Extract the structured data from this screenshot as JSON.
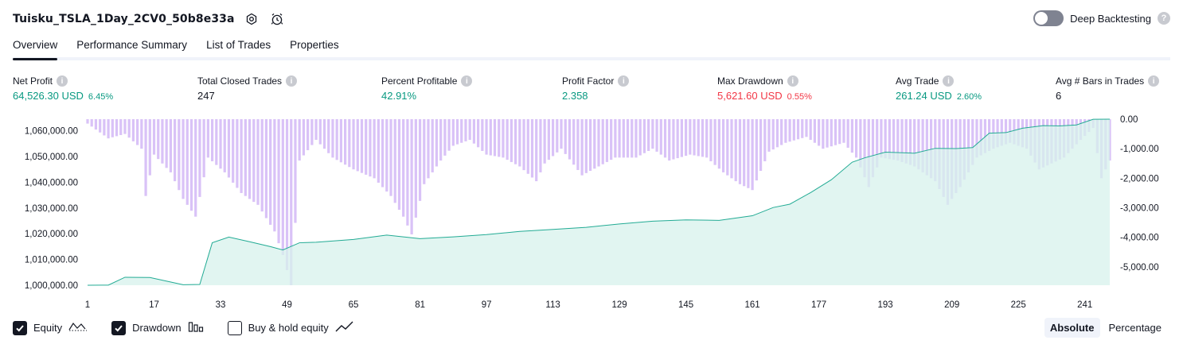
{
  "header": {
    "strategy_name": "Tuisku_TSLA_1Day_2CV0_50b8e33a",
    "settings_icon": "gear-icon",
    "alert_icon": "alarm-clock-icon"
  },
  "deep_backtesting": {
    "label": "Deep Backtesting",
    "enabled": false,
    "help": "?"
  },
  "tabs": [
    {
      "label": "Overview",
      "active": true
    },
    {
      "label": "Performance Summary",
      "active": false
    },
    {
      "label": "List of Trades",
      "active": false
    },
    {
      "label": "Properties",
      "active": false
    }
  ],
  "metrics": {
    "net_profit": {
      "label": "Net Profit",
      "value": "64,526.30 USD",
      "pct": "6.45%"
    },
    "total_closed_trades": {
      "label": "Total Closed Trades",
      "value": "247"
    },
    "percent_profitable": {
      "label": "Percent Profitable",
      "value": "42.91%"
    },
    "profit_factor": {
      "label": "Profit Factor",
      "value": "2.358"
    },
    "max_drawdown": {
      "label": "Max Drawdown",
      "value": "5,621.60 USD",
      "pct": "0.55%"
    },
    "avg_trade": {
      "label": "Avg Trade",
      "value": "261.24 USD",
      "pct": "2.60%"
    },
    "avg_bars": {
      "label": "Avg # Bars in Trades",
      "value": "6"
    },
    "info_glyph": "i"
  },
  "colors": {
    "positive": "#089981",
    "negative": "#f23645",
    "equity_line": "#22ab94",
    "equity_fill": "#d7f2ec",
    "drawdown_bar": "#d9c2f7"
  },
  "chart_data": {
    "type": "area",
    "x_ticks": [
      "1",
      "17",
      "33",
      "49",
      "65",
      "81",
      "97",
      "113",
      "129",
      "145",
      "161",
      "177",
      "193",
      "209",
      "225",
      "241"
    ],
    "left_axis": {
      "ticks": [
        "1,060,000.00",
        "1,050,000.00",
        "1,040,000.00",
        "1,030,000.00",
        "1,020,000.00",
        "1,010,000.00",
        "1,000,000.00"
      ],
      "ylim": [
        1000000,
        1064526.3
      ]
    },
    "right_axis": {
      "ticks": [
        "0.00",
        "-1,000.00",
        "-2,000.00",
        "-3,000.00",
        "-4,000.00",
        "-5,000.00"
      ],
      "ylim": [
        -5621.6,
        0
      ]
    },
    "trades": 247,
    "series": [
      {
        "name": "Equity",
        "type": "area",
        "points": [
          [
            1,
            1000000
          ],
          [
            6,
            1000050
          ],
          [
            10,
            1003100
          ],
          [
            16,
            1003000
          ],
          [
            24,
            1000200
          ],
          [
            28,
            1000300
          ],
          [
            31,
            1016500
          ],
          [
            35,
            1018700
          ],
          [
            40,
            1016900
          ],
          [
            45,
            1015000
          ],
          [
            48,
            1013700
          ],
          [
            52,
            1016500
          ],
          [
            56,
            1016700
          ],
          [
            65,
            1017800
          ],
          [
            73,
            1019500
          ],
          [
            81,
            1018100
          ],
          [
            89,
            1018800
          ],
          [
            97,
            1019700
          ],
          [
            105,
            1020900
          ],
          [
            113,
            1021700
          ],
          [
            121,
            1022500
          ],
          [
            129,
            1023800
          ],
          [
            137,
            1024900
          ],
          [
            145,
            1025400
          ],
          [
            153,
            1025200
          ],
          [
            161,
            1027000
          ],
          [
            166,
            1030200
          ],
          [
            170,
            1031500
          ],
          [
            175,
            1036000
          ],
          [
            180,
            1041000
          ],
          [
            185,
            1047800
          ],
          [
            188,
            1049500
          ],
          [
            193,
            1051700
          ],
          [
            200,
            1051300
          ],
          [
            205,
            1053200
          ],
          [
            210,
            1053100
          ],
          [
            214,
            1053500
          ],
          [
            218,
            1059100
          ],
          [
            222,
            1059300
          ],
          [
            226,
            1061000
          ],
          [
            231,
            1062000
          ],
          [
            235,
            1061900
          ],
          [
            239,
            1062300
          ],
          [
            243,
            1064500
          ],
          [
            247,
            1064526.3
          ]
        ]
      },
      {
        "name": "Drawdown",
        "type": "bar",
        "points": [
          [
            1,
            -150
          ],
          [
            6,
            -650
          ],
          [
            10,
            -500
          ],
          [
            14,
            -1000
          ],
          [
            15,
            -2600
          ],
          [
            17,
            -1200
          ],
          [
            21,
            -1800
          ],
          [
            24,
            -2700
          ],
          [
            27,
            -3300
          ],
          [
            30,
            -1300
          ],
          [
            34,
            -1800
          ],
          [
            38,
            -2500
          ],
          [
            42,
            -2900
          ],
          [
            46,
            -3800
          ],
          [
            48,
            -4600
          ],
          [
            50,
            -5621.6
          ],
          [
            52,
            -1400
          ],
          [
            56,
            -700
          ],
          [
            60,
            -1300
          ],
          [
            65,
            -1700
          ],
          [
            70,
            -2000
          ],
          [
            74,
            -2600
          ],
          [
            77,
            -3300
          ],
          [
            79,
            -3900
          ],
          [
            82,
            -2200
          ],
          [
            86,
            -1400
          ],
          [
            89,
            -900
          ],
          [
            93,
            -700
          ],
          [
            97,
            -1200
          ],
          [
            101,
            -1300
          ],
          [
            105,
            -1600
          ],
          [
            109,
            -2100
          ],
          [
            111,
            -1500
          ],
          [
            115,
            -1000
          ],
          [
            120,
            -1900
          ],
          [
            124,
            -1600
          ],
          [
            128,
            -1300
          ],
          [
            133,
            -1300
          ],
          [
            137,
            -1000
          ],
          [
            141,
            -1400
          ],
          [
            146,
            -1200
          ],
          [
            150,
            -1300
          ],
          [
            154,
            -1800
          ],
          [
            158,
            -2200
          ],
          [
            161,
            -2400
          ],
          [
            165,
            -1100
          ],
          [
            169,
            -800
          ],
          [
            174,
            -600
          ],
          [
            178,
            -1000
          ],
          [
            183,
            -800
          ],
          [
            186,
            -1300
          ],
          [
            189,
            -2300
          ],
          [
            192,
            -1300
          ],
          [
            196,
            -1400
          ],
          [
            200,
            -1600
          ],
          [
            205,
            -2100
          ],
          [
            208,
            -2900
          ],
          [
            211,
            -2300
          ],
          [
            215,
            -1300
          ],
          [
            219,
            -1000
          ],
          [
            223,
            -800
          ],
          [
            227,
            -1000
          ],
          [
            230,
            -1700
          ],
          [
            233,
            -1500
          ],
          [
            236,
            -1300
          ],
          [
            240,
            -700
          ],
          [
            243,
            -300
          ],
          [
            245,
            -2000
          ],
          [
            247,
            -1400
          ]
        ]
      }
    ],
    "grid": false
  },
  "legend": {
    "equity": {
      "label": "Equity",
      "checked": true,
      "icon": "equity-line-icon"
    },
    "drawdown": {
      "label": "Drawdown",
      "checked": true,
      "icon": "drawdown-bars-icon"
    },
    "buy_hold": {
      "label": "Buy & hold equity",
      "checked": false,
      "icon": "trend-line-icon"
    }
  },
  "modes": [
    {
      "label": "Absolute",
      "active": true
    },
    {
      "label": "Percentage",
      "active": false
    }
  ]
}
